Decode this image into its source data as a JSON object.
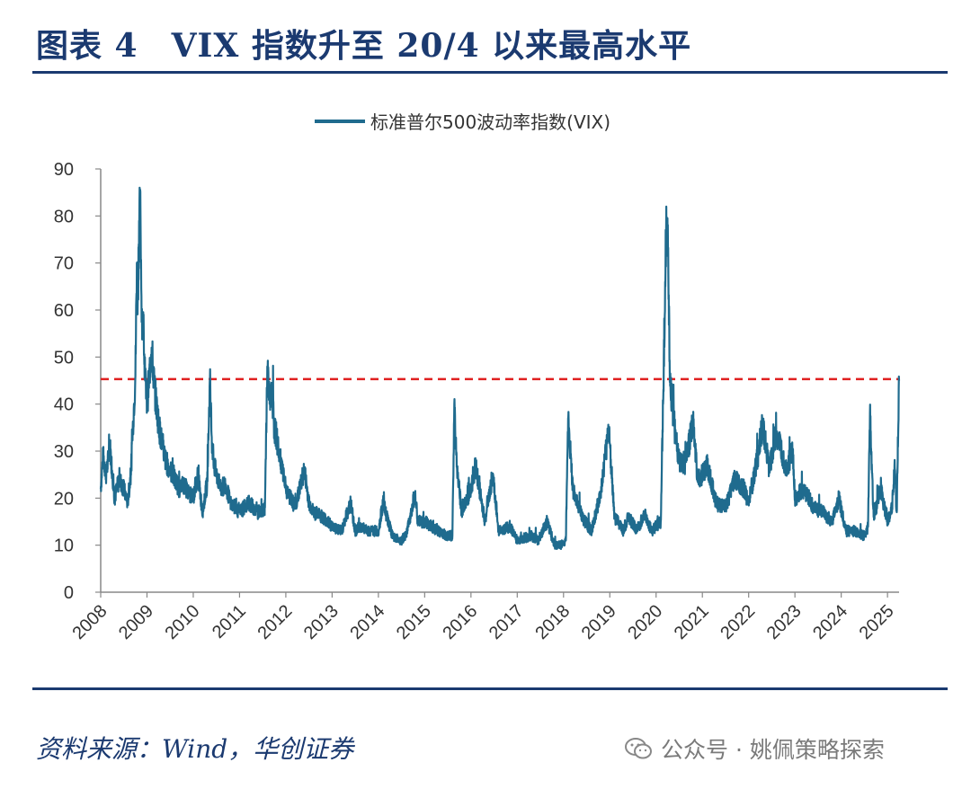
{
  "header": {
    "title": "图表 4　VIX 指数升至 20/4 以来最高水平"
  },
  "footer": {
    "source": "资料来源：Wind，华创证券",
    "watermark": "公众号 · 姚佩策略探索"
  },
  "colors": {
    "series": "#1f6b8e",
    "reference_line": "#e02020",
    "axis": "#888888",
    "navy": "#1b3a70"
  },
  "chart_data": {
    "type": "line",
    "title": "",
    "legend": [
      {
        "name": "标准普尔500波动率指数(VIX)",
        "color": "#1f6b8e"
      }
    ],
    "legend_position": "top-center",
    "xlabel": "",
    "ylabel": "",
    "ylim": [
      0,
      90
    ],
    "yticks": [
      0,
      10,
      20,
      30,
      40,
      50,
      60,
      70,
      80,
      90
    ],
    "xlim": [
      2008,
      2025.25
    ],
    "xticks": [
      "2008",
      "2009",
      "2010",
      "2011",
      "2012",
      "2013",
      "2014",
      "2015",
      "2016",
      "2017",
      "2018",
      "2019",
      "2020",
      "2021",
      "2022",
      "2023",
      "2024",
      "2025"
    ],
    "reference_line": {
      "y": 45.3,
      "style": "dashed",
      "color": "#e02020"
    },
    "series": [
      {
        "name": "标准普尔500波动率指数(VIX)",
        "x": [
          2008.0,
          2008.05,
          2008.12,
          2008.2,
          2008.3,
          2008.4,
          2008.5,
          2008.58,
          2008.65,
          2008.7,
          2008.75,
          2008.78,
          2008.8,
          2008.83,
          2008.86,
          2008.88,
          2008.9,
          2008.93,
          2008.96,
          2009.0,
          2009.05,
          2009.1,
          2009.15,
          2009.2,
          2009.25,
          2009.3,
          2009.4,
          2009.5,
          2009.6,
          2009.7,
          2009.8,
          2009.9,
          2010.0,
          2010.1,
          2010.2,
          2010.3,
          2010.36,
          2010.4,
          2010.45,
          2010.5,
          2010.6,
          2010.7,
          2010.8,
          2010.9,
          2011.0,
          2011.2,
          2011.4,
          2011.55,
          2011.6,
          2011.65,
          2011.7,
          2011.75,
          2011.8,
          2011.85,
          2011.9,
          2012.0,
          2012.2,
          2012.4,
          2012.5,
          2012.6,
          2012.8,
          2013.0,
          2013.2,
          2013.4,
          2013.5,
          2013.6,
          2013.8,
          2014.0,
          2014.1,
          2014.3,
          2014.5,
          2014.6,
          2014.79,
          2014.85,
          2015.0,
          2015.3,
          2015.5,
          2015.6,
          2015.64,
          2015.7,
          2015.8,
          2016.0,
          2016.1,
          2016.3,
          2016.47,
          2016.6,
          2016.85,
          2017.0,
          2017.3,
          2017.45,
          2017.65,
          2017.8,
          2017.95,
          2018.05,
          2018.1,
          2018.2,
          2018.4,
          2018.6,
          2018.8,
          2018.98,
          2019.1,
          2019.3,
          2019.4,
          2019.6,
          2019.75,
          2019.9,
          2020.0,
          2020.1,
          2020.15,
          2020.2,
          2020.22,
          2020.25,
          2020.3,
          2020.4,
          2020.5,
          2020.6,
          2020.8,
          2020.9,
          2021.0,
          2021.1,
          2021.3,
          2021.5,
          2021.7,
          2021.9,
          2022.0,
          2022.2,
          2022.3,
          2022.45,
          2022.6,
          2022.8,
          2022.95,
          2023.0,
          2023.2,
          2023.4,
          2023.6,
          2023.8,
          2023.95,
          2024.1,
          2024.3,
          2024.5,
          2024.58,
          2024.62,
          2024.7,
          2024.85,
          2025.0,
          2025.1,
          2025.15,
          2025.2,
          2025.22,
          2025.25
        ],
        "values": [
          22,
          29,
          25,
          31,
          20,
          24,
          22,
          19,
          25,
          36,
          46,
          70,
          62,
          79,
          80,
          63,
          58,
          55,
          45,
          40,
          46,
          52,
          45,
          40,
          36,
          33,
          28,
          26,
          24,
          22,
          23,
          21,
          20,
          25,
          17,
          23,
          45,
          33,
          27,
          25,
          22,
          23,
          19,
          18,
          17,
          19,
          17,
          18,
          48,
          40,
          43,
          35,
          33,
          30,
          27,
          22,
          18,
          26,
          19,
          17,
          16,
          14,
          13,
          19,
          13,
          14,
          13,
          13,
          19,
          12,
          11,
          12,
          21,
          15,
          15,
          13,
          12,
          12,
          40,
          26,
          17,
          22,
          27,
          15,
          25,
          13,
          14,
          11,
          12,
          11,
          15,
          10,
          10,
          11,
          37,
          22,
          16,
          13,
          21,
          35,
          16,
          13,
          16,
          13,
          17,
          13,
          14,
          15,
          40,
          65,
          82,
          75,
          45,
          35,
          28,
          26,
          36,
          24,
          25,
          27,
          19,
          18,
          24,
          22,
          19,
          29,
          36,
          26,
          34,
          26,
          30,
          20,
          22,
          18,
          17,
          15,
          20,
          13,
          13,
          12,
          14,
          38,
          16,
          22,
          15,
          18,
          27,
          17,
          28,
          45
        ]
      }
    ]
  }
}
